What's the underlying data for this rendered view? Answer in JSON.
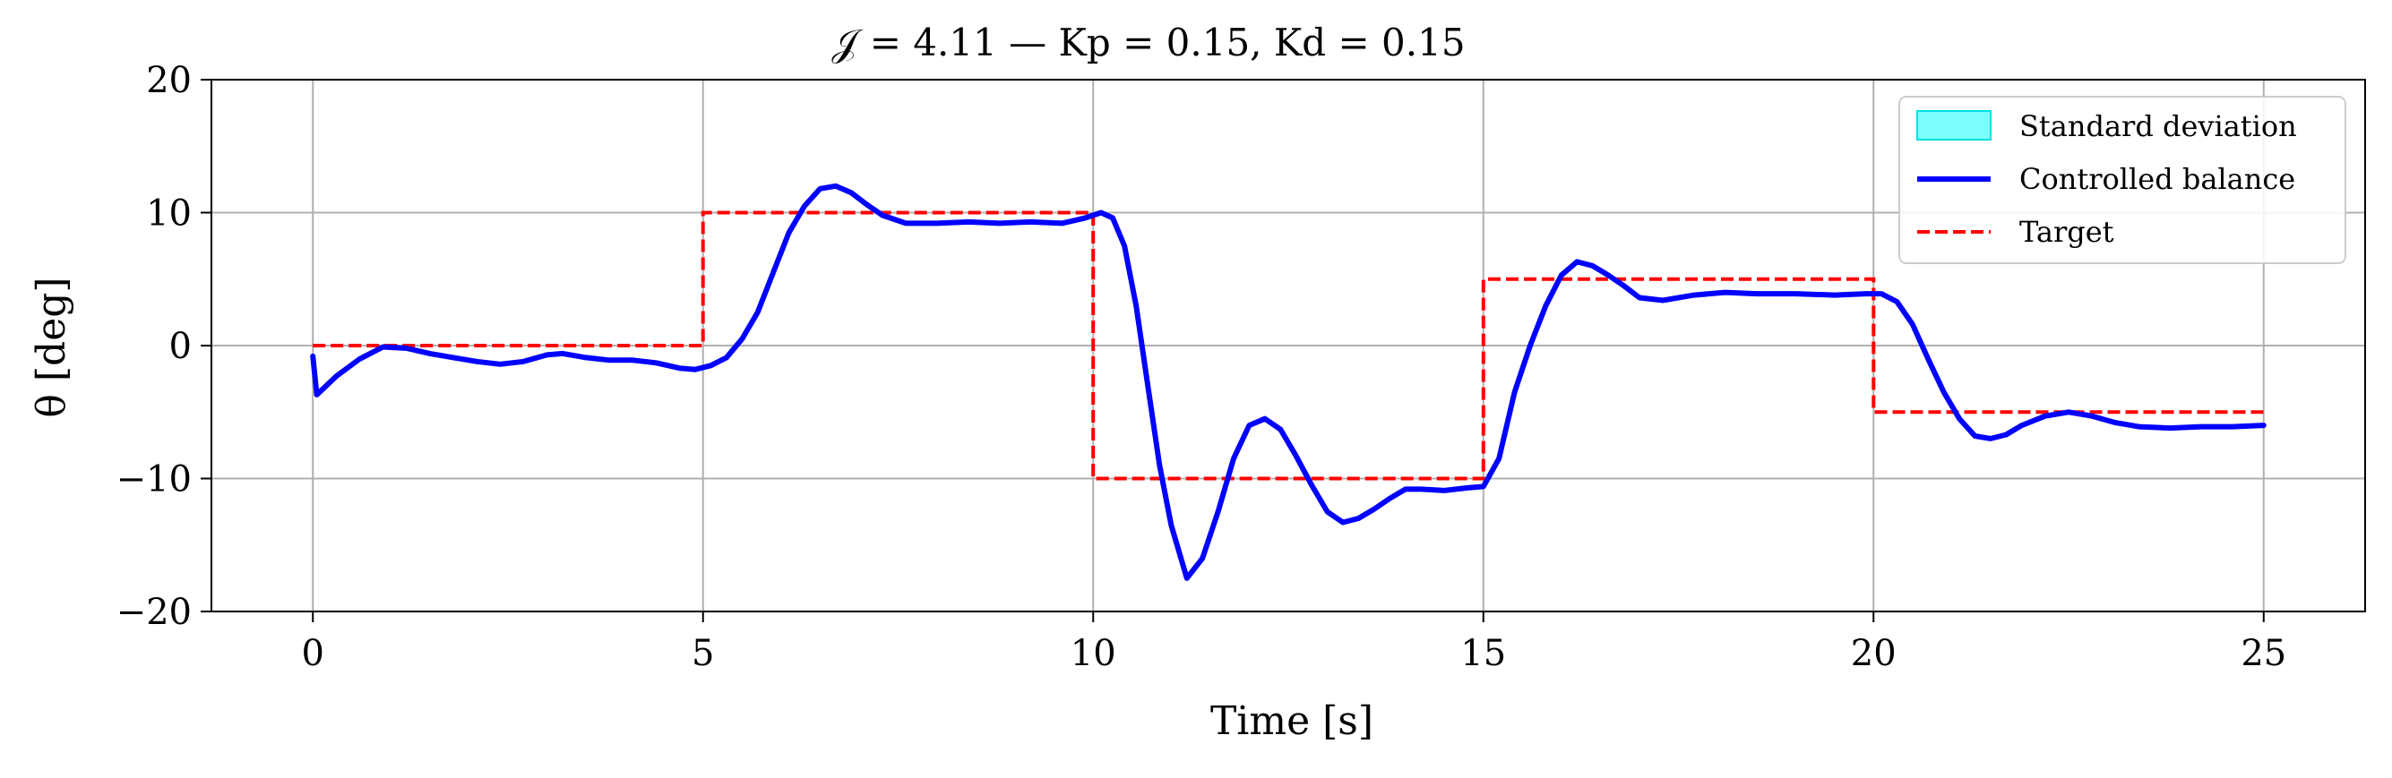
{
  "chart_data": {
    "type": "line",
    "title": "𝒥 = 4.11 — Kp = 0.15, Kd = 0.15",
    "xlabel": "Time [s]",
    "ylabel": "θ [deg]",
    "xlim": [
      -1.3,
      26.3
    ],
    "ylim": [
      -20,
      20
    ],
    "xticks": [
      0,
      5,
      10,
      15,
      20,
      25
    ],
    "yticks": [
      -20,
      -10,
      0,
      10,
      20
    ],
    "xtick_labels": [
      "0",
      "5",
      "10",
      "15",
      "20",
      "25"
    ],
    "ytick_labels": [
      "−20",
      "−10",
      "0",
      "10",
      "20"
    ],
    "grid": true,
    "legend_position": "top-right",
    "legend": [
      "Standard deviation",
      "Controlled balance",
      "Target"
    ],
    "colors": {
      "std_fill": "#66ffff",
      "std_edge": "#00e0e0",
      "balance": "#0000ff",
      "target": "#ff0000",
      "grid": "#b0b0b0"
    },
    "series": [
      {
        "name": "Controlled balance",
        "style": "solid",
        "x": [
          0,
          0.05,
          0.3,
          0.6,
          0.9,
          1.2,
          1.5,
          1.8,
          2.1,
          2.4,
          2.7,
          3.0,
          3.2,
          3.5,
          3.8,
          4.1,
          4.4,
          4.7,
          4.9,
          5.1,
          5.3,
          5.5,
          5.7,
          5.9,
          6.1,
          6.3,
          6.5,
          6.7,
          6.9,
          7.1,
          7.3,
          7.6,
          8.0,
          8.4,
          8.8,
          9.2,
          9.6,
          9.9,
          10.1,
          10.25,
          10.4,
          10.55,
          10.7,
          10.85,
          11.0,
          11.2,
          11.4,
          11.6,
          11.8,
          12.0,
          12.2,
          12.4,
          12.6,
          12.8,
          13.0,
          13.2,
          13.4,
          13.6,
          13.8,
          14.0,
          14.2,
          14.5,
          14.8,
          15.0,
          15.2,
          15.4,
          15.6,
          15.8,
          16.0,
          16.2,
          16.4,
          16.6,
          16.8,
          17.0,
          17.3,
          17.7,
          18.1,
          18.5,
          19.0,
          19.5,
          19.9,
          20.1,
          20.3,
          20.5,
          20.7,
          20.9,
          21.1,
          21.3,
          21.5,
          21.7,
          21.9,
          22.2,
          22.5,
          22.8,
          23.1,
          23.4,
          23.8,
          24.2,
          24.6,
          25.0
        ],
        "y": [
          -0.8,
          -3.7,
          -2.3,
          -1.0,
          -0.1,
          -0.2,
          -0.6,
          -0.9,
          -1.2,
          -1.4,
          -1.2,
          -0.7,
          -0.6,
          -0.9,
          -1.1,
          -1.1,
          -1.3,
          -1.7,
          -1.8,
          -1.5,
          -0.9,
          0.5,
          2.5,
          5.5,
          8.5,
          10.5,
          11.8,
          12.0,
          11.5,
          10.6,
          9.8,
          9.2,
          9.2,
          9.3,
          9.2,
          9.3,
          9.2,
          9.6,
          10.0,
          9.6,
          7.5,
          3.0,
          -3.0,
          -9.0,
          -13.5,
          -17.5,
          -16.0,
          -12.5,
          -8.5,
          -6.0,
          -5.5,
          -6.3,
          -8.3,
          -10.5,
          -12.5,
          -13.3,
          -13.0,
          -12.3,
          -11.5,
          -10.8,
          -10.8,
          -10.9,
          -10.7,
          -10.6,
          -8.5,
          -3.5,
          0.0,
          3.0,
          5.3,
          6.3,
          6.0,
          5.3,
          4.5,
          3.6,
          3.4,
          3.8,
          4.0,
          3.9,
          3.9,
          3.8,
          3.9,
          3.9,
          3.3,
          1.6,
          -1.0,
          -3.5,
          -5.5,
          -6.8,
          -7.0,
          -6.7,
          -6.0,
          -5.3,
          -5.0,
          -5.3,
          -5.8,
          -6.1,
          -6.2,
          -6.1,
          -6.1,
          -6.0
        ]
      },
      {
        "name": "Target",
        "style": "dashed",
        "x": [
          0,
          5,
          5,
          10,
          10,
          15,
          15,
          20,
          20,
          25
        ],
        "y": [
          0,
          0,
          10,
          10,
          -10,
          -10,
          5,
          5,
          -5,
          -5
        ]
      }
    ]
  }
}
